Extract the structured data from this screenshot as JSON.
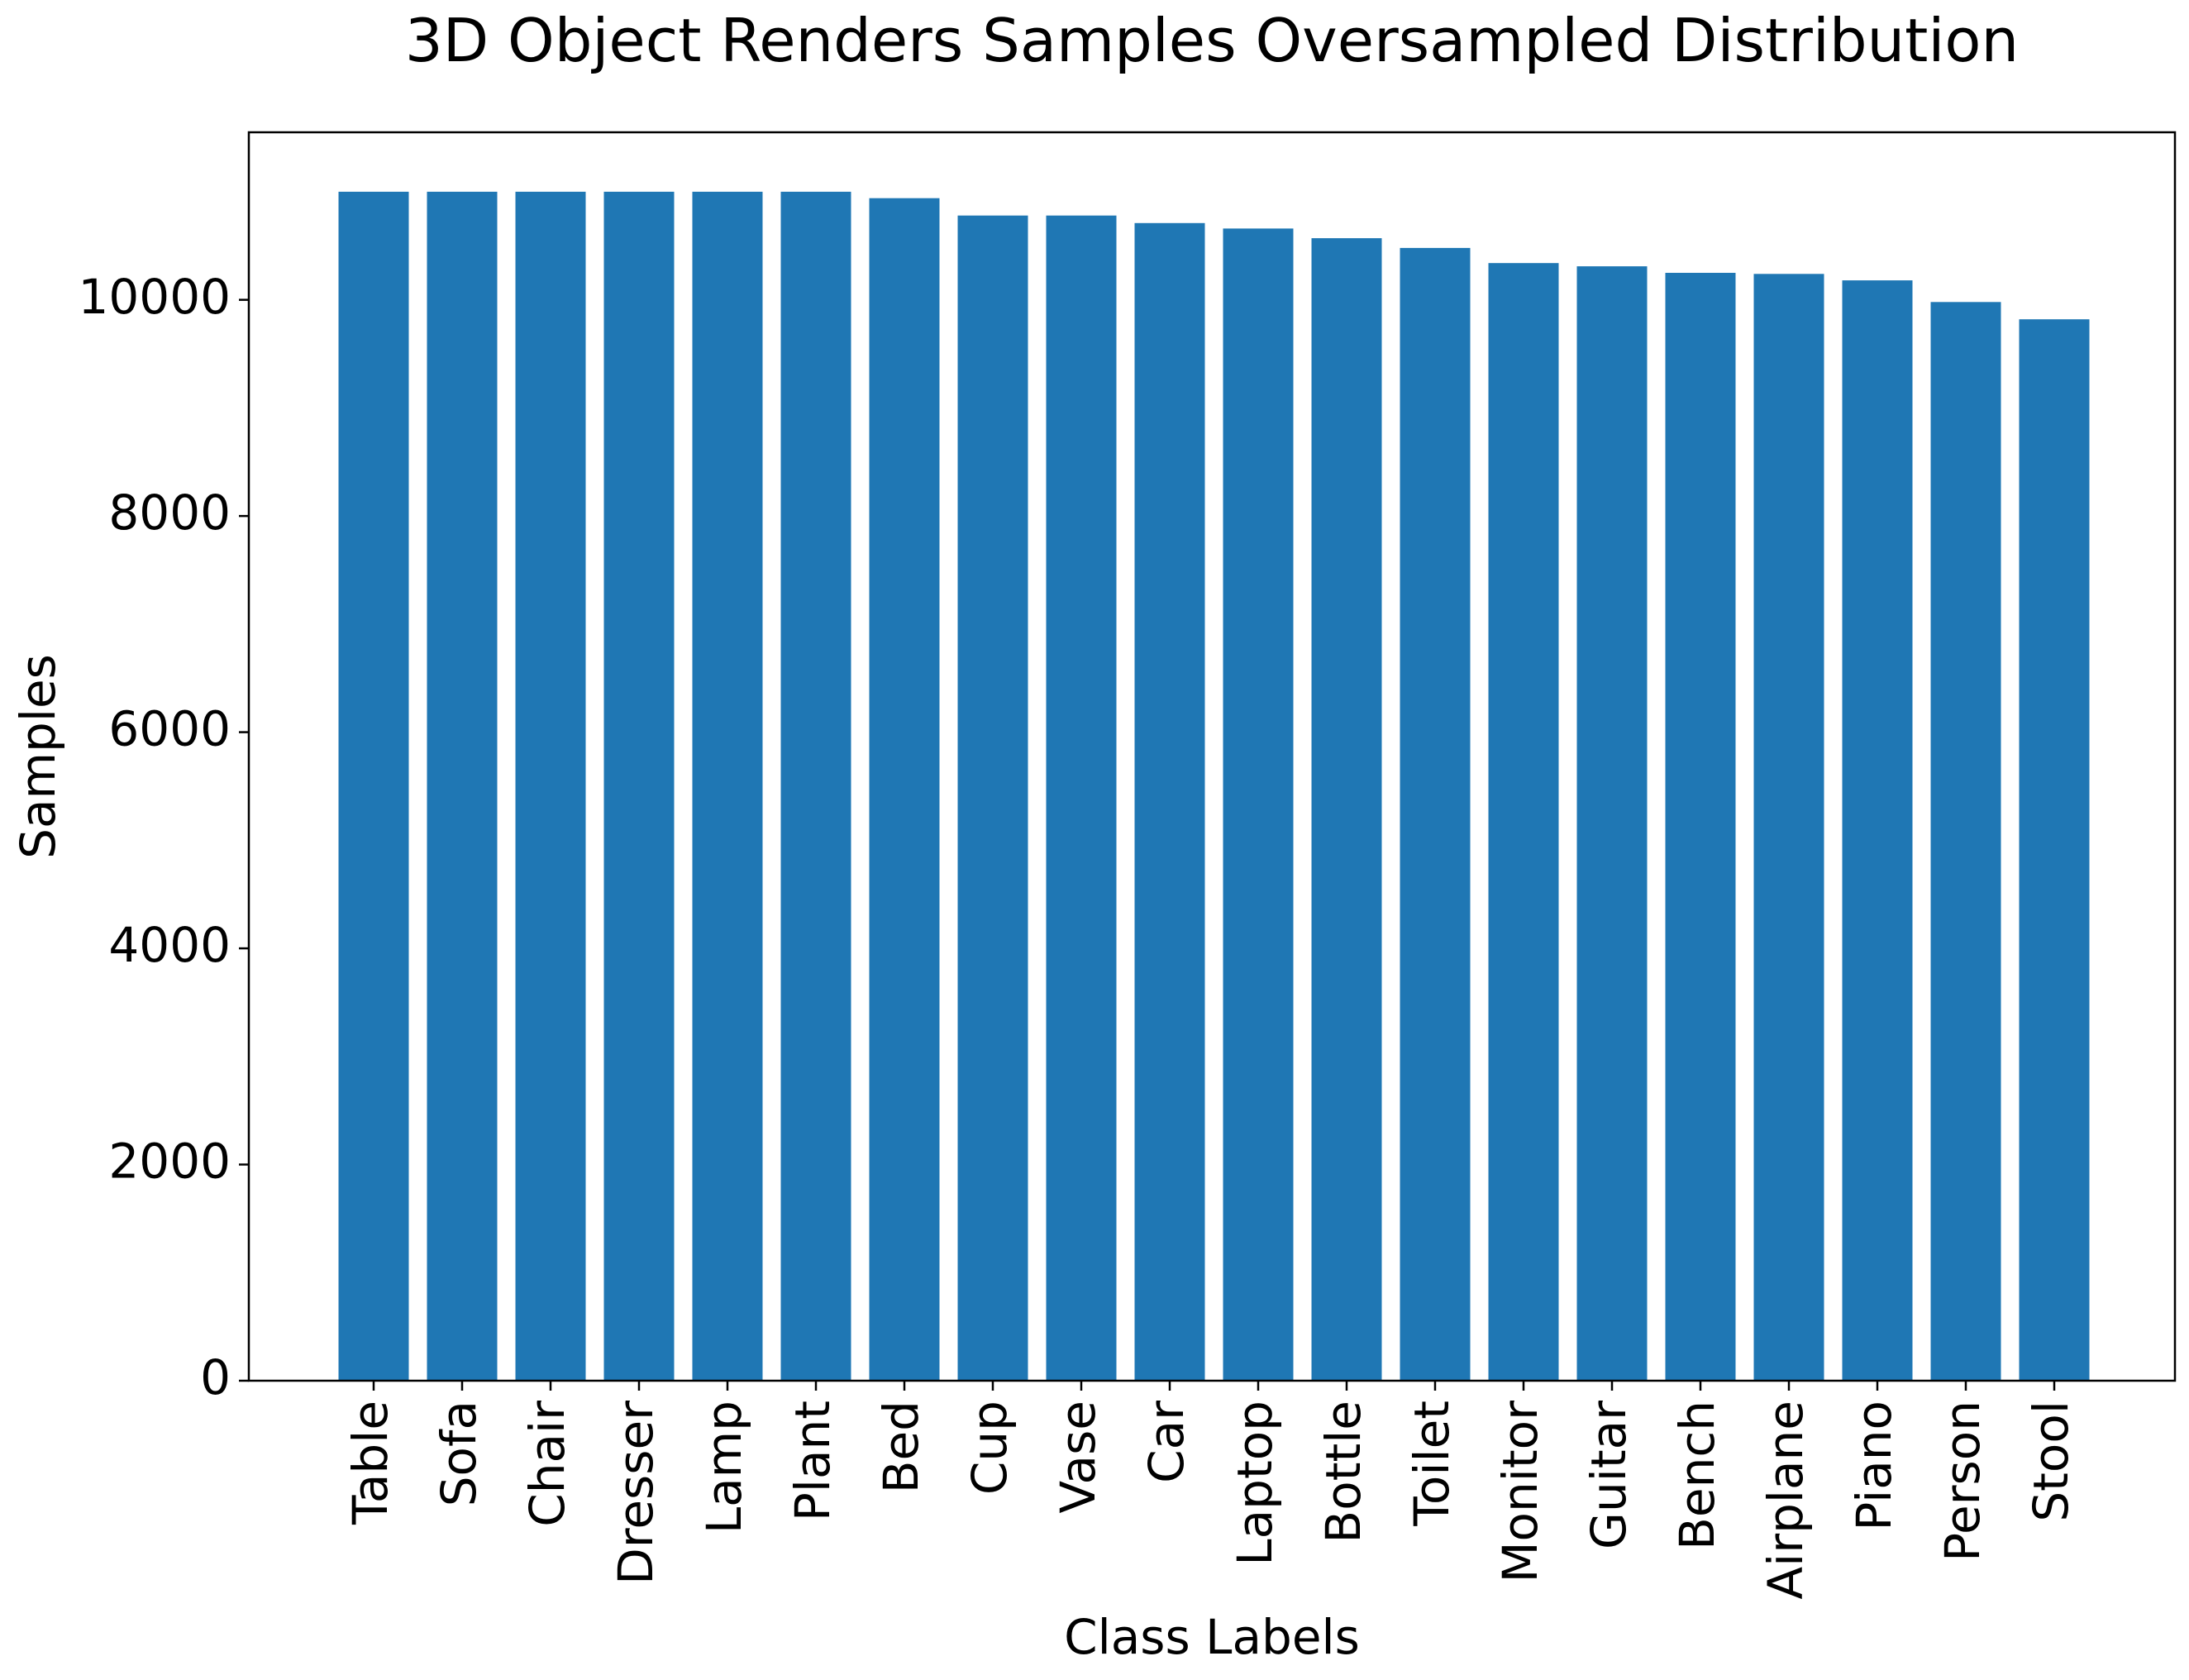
{
  "chart_data": {
    "type": "bar",
    "title": "3D Object Renders Samples Oversampled Distribution",
    "xlabel": "Class Labels",
    "ylabel": "Samples",
    "categories": [
      "Table",
      "Sofa",
      "Chair",
      "Dresser",
      "Lamp",
      "Plant",
      "Bed",
      "Cup",
      "Vase",
      "Car",
      "Laptop",
      "Bottle",
      "Toilet",
      "Monitor",
      "Guitar",
      "Bench",
      "Airplane",
      "Piano",
      "Person",
      "Stool"
    ],
    "values": [
      11000,
      11000,
      11000,
      11000,
      11000,
      11000,
      10940,
      10780,
      10780,
      10710,
      10660,
      10570,
      10480,
      10340,
      10310,
      10250,
      10240,
      10180,
      9980,
      9820
    ],
    "ylim": [
      0,
      11550
    ],
    "yticks": [
      0,
      2000,
      4000,
      6000,
      8000,
      10000
    ],
    "bar_color": "#1f77b4",
    "grid": false,
    "legend": "none"
  }
}
